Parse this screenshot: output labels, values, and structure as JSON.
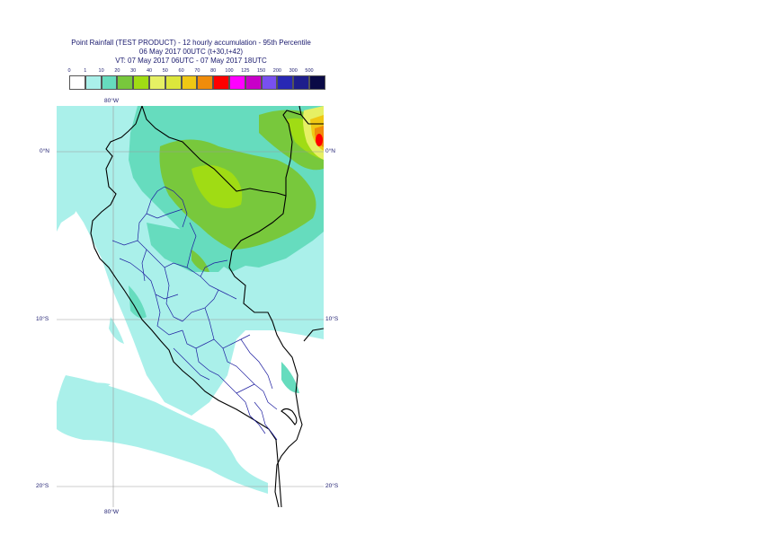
{
  "title": {
    "line1": "Point Rainfall (TEST PRODUCT) - 12 hourly accumulation - 95th Percentile",
    "line2": "06 May 2017 00UTC (t+30,t+42)",
    "line3": "VT: 07 May 2017 06UTC - 07 May 2017 18UTC"
  },
  "colorbar": {
    "labels": [
      "0",
      "1",
      "10",
      "20",
      "30",
      "40",
      "50",
      "60",
      "70",
      "80",
      "100",
      "125",
      "150",
      "200",
      "300",
      "500"
    ],
    "colors": [
      "#ffffff",
      "#aaf0ea",
      "#66dcbe",
      "#78c83c",
      "#a0dc14",
      "#e6f064",
      "#dce63c",
      "#f0c814",
      "#f08c0a",
      "#ff0000",
      "#ff00ff",
      "#c800c8",
      "#7850f0",
      "#2828b4",
      "#1e1e8c",
      "#0a0a46"
    ]
  },
  "axes": {
    "lon_top": "80°W",
    "lon_bottom": "80°W",
    "lat_left": [
      "0°N",
      "10°S",
      "20°S"
    ],
    "lat_right": [
      "0°N",
      "10°S",
      "20°S"
    ]
  }
}
